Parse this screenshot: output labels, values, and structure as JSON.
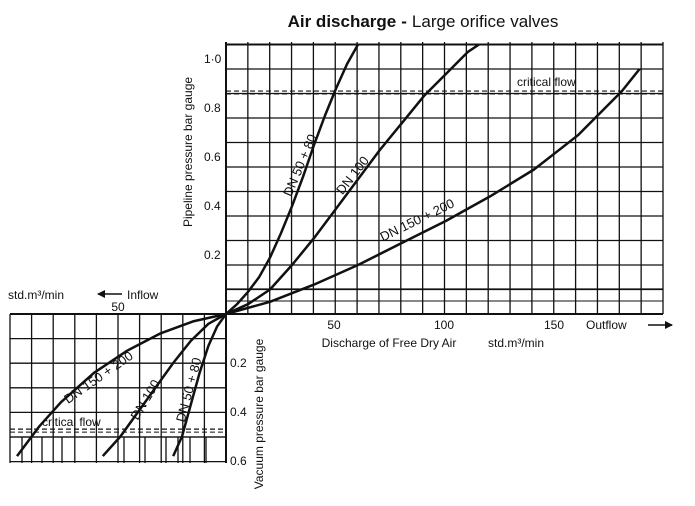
{
  "chart_data": {
    "type": "line",
    "title": "Air discharge",
    "title_separator": "-",
    "subtitle": "Large orifice valves",
    "x_unit": "std.m³/min",
    "x_label": "Discharge of Free Dry Air",
    "outflow_label": "Outflow",
    "inflow_label": "Inflow",
    "inflow_unit": "std.m³/min",
    "y_label_top": "Pipeline pressure bar gauge",
    "y_label_bottom": "Vacuum pressure bar gauge",
    "x_ticks_outflow": [
      "50",
      "100",
      "150"
    ],
    "x_ticks_inflow": [
      "50"
    ],
    "y_ticks_top": [
      "0.2",
      "0.4",
      "0.6",
      "0.8",
      "1·0"
    ],
    "y_ticks_bottom": [
      "0.2",
      "0.4",
      "0.6"
    ],
    "xlim_outflow": [
      0,
      190
    ],
    "ylim_top": [
      0,
      1.1
    ],
    "xlim_inflow": [
      0,
      97
    ],
    "ylim_bottom": [
      0,
      0.6
    ],
    "grid": true,
    "critical_flow_label": "critical flow",
    "critical_flow_top": 0.91,
    "critical_flow_bottom": 0.47,
    "outflow_series": [
      {
        "name": "DN 50 + 80",
        "x": [
          0,
          5,
          10,
          15,
          20,
          25,
          30,
          35,
          40,
          45,
          50,
          55,
          60
        ],
        "y": [
          0,
          0.04,
          0.09,
          0.15,
          0.23,
          0.33,
          0.44,
          0.56,
          0.69,
          0.81,
          0.92,
          1.02,
          1.1
        ]
      },
      {
        "name": "DN 100",
        "x": [
          0,
          10,
          20,
          30,
          40,
          50,
          60,
          70,
          80,
          90,
          100,
          110,
          115
        ],
        "y": [
          0,
          0.04,
          0.1,
          0.2,
          0.31,
          0.43,
          0.55,
          0.67,
          0.78,
          0.89,
          0.98,
          1.07,
          1.1
        ]
      },
      {
        "name": "DN 150 + 200",
        "x": [
          0,
          20,
          40,
          60,
          80,
          100,
          120,
          140,
          160,
          170,
          180,
          188
        ],
        "y": [
          0,
          0.05,
          0.12,
          0.2,
          0.29,
          0.38,
          0.48,
          0.59,
          0.73,
          0.82,
          0.91,
          1.0
        ]
      }
    ],
    "inflow_series": [
      {
        "name": "DN 50 + 80",
        "x": [
          0,
          4,
          8,
          12,
          16,
          20,
          24
        ],
        "y": [
          0,
          0.05,
          0.13,
          0.24,
          0.37,
          0.5,
          0.58
        ]
      },
      {
        "name": "DN 100",
        "x": [
          0,
          8,
          16,
          24,
          32,
          40,
          48,
          56
        ],
        "y": [
          0,
          0.04,
          0.11,
          0.2,
          0.3,
          0.4,
          0.5,
          0.58
        ]
      },
      {
        "name": "DN 150 + 200",
        "x": [
          0,
          15,
          30,
          45,
          60,
          75,
          85,
          95
        ],
        "y": [
          0,
          0.03,
          0.08,
          0.15,
          0.24,
          0.36,
          0.46,
          0.58
        ]
      }
    ]
  }
}
